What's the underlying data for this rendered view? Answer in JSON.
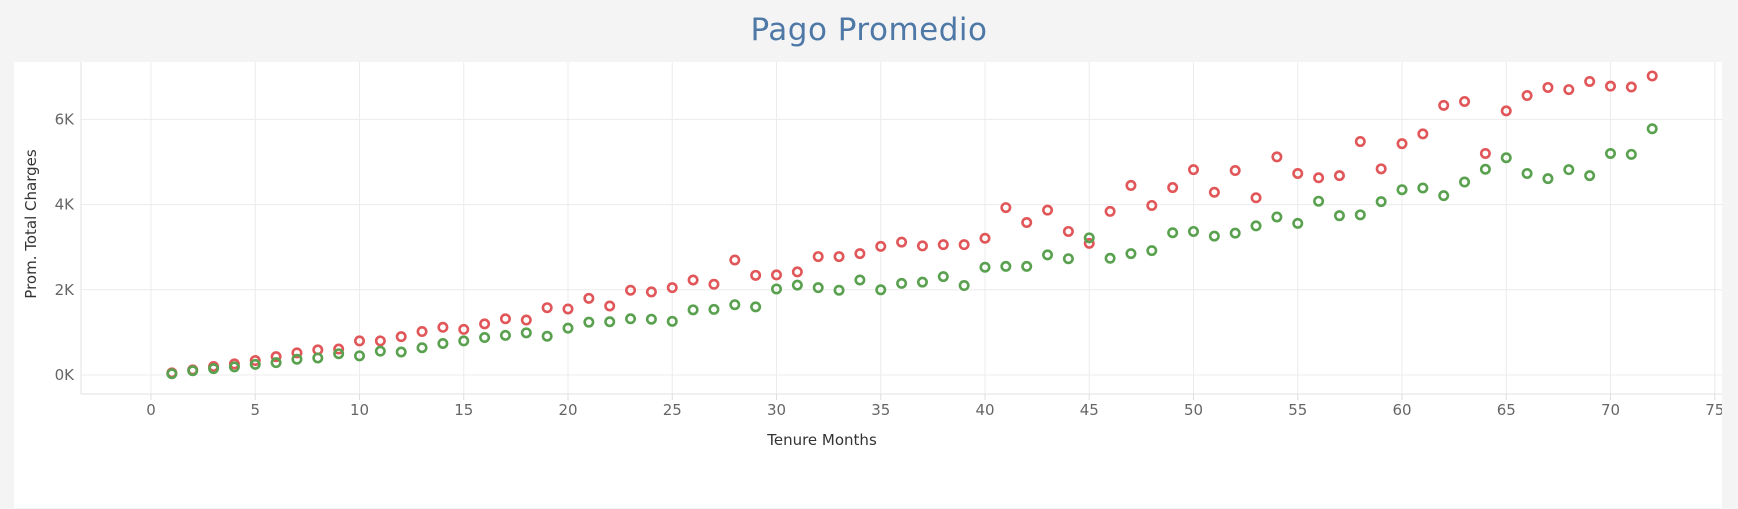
{
  "chart_data": {
    "type": "scatter",
    "title": "Pago Promedio",
    "xlabel": "Tenure Months",
    "ylabel": "Prom. Total Charges",
    "xlim": [
      -5,
      76
    ],
    "ylim": [
      -400,
      7500
    ],
    "x_ticks": [
      0,
      5,
      10,
      15,
      20,
      25,
      30,
      35,
      40,
      45,
      50,
      55,
      60,
      65,
      70,
      75
    ],
    "y_ticks": [
      0,
      2000,
      4000,
      6000
    ],
    "y_tick_labels": [
      "0K",
      "2K",
      "4K",
      "6K"
    ],
    "grid": true,
    "series": [
      {
        "color": "#e15759",
        "points": [
          [
            1,
            50
          ],
          [
            2,
            120
          ],
          [
            3,
            200
          ],
          [
            4,
            260
          ],
          [
            5,
            340
          ],
          [
            6,
            430
          ],
          [
            7,
            520
          ],
          [
            8,
            590
          ],
          [
            9,
            610
          ],
          [
            10,
            800
          ],
          [
            11,
            800
          ],
          [
            12,
            900
          ],
          [
            13,
            1020
          ],
          [
            14,
            1120
          ],
          [
            15,
            1070
          ],
          [
            16,
            1200
          ],
          [
            17,
            1320
          ],
          [
            18,
            1290
          ],
          [
            19,
            1580
          ],
          [
            20,
            1550
          ],
          [
            21,
            1800
          ],
          [
            22,
            1620
          ],
          [
            23,
            1990
          ],
          [
            24,
            1950
          ],
          [
            25,
            2050
          ],
          [
            26,
            2230
          ],
          [
            27,
            2130
          ],
          [
            28,
            2700
          ],
          [
            29,
            2340
          ],
          [
            30,
            2350
          ],
          [
            31,
            2420
          ],
          [
            32,
            2780
          ],
          [
            33,
            2780
          ],
          [
            34,
            2850
          ],
          [
            35,
            3020
          ],
          [
            36,
            3120
          ],
          [
            37,
            3030
          ],
          [
            38,
            3060
          ],
          [
            39,
            3060
          ],
          [
            40,
            3210
          ],
          [
            41,
            3930
          ],
          [
            42,
            3580
          ],
          [
            43,
            3870
          ],
          [
            44,
            3370
          ],
          [
            45,
            3090
          ],
          [
            46,
            3840
          ],
          [
            47,
            4450
          ],
          [
            48,
            3980
          ],
          [
            49,
            4400
          ],
          [
            50,
            4820
          ],
          [
            51,
            4290
          ],
          [
            52,
            4800
          ],
          [
            53,
            4160
          ],
          [
            54,
            5120
          ],
          [
            55,
            4730
          ],
          [
            56,
            4630
          ],
          [
            57,
            4680
          ],
          [
            58,
            5480
          ],
          [
            59,
            4840
          ],
          [
            60,
            5430
          ],
          [
            61,
            5660
          ],
          [
            62,
            6330
          ],
          [
            63,
            6420
          ],
          [
            64,
            5200
          ],
          [
            65,
            6200
          ],
          [
            66,
            6560
          ],
          [
            67,
            6750
          ],
          [
            68,
            6700
          ],
          [
            69,
            6890
          ],
          [
            70,
            6780
          ],
          [
            71,
            6760
          ],
          [
            72,
            7020
          ]
        ]
      },
      {
        "color": "#59a14f",
        "points": [
          [
            1,
            30
          ],
          [
            2,
            100
          ],
          [
            3,
            150
          ],
          [
            4,
            190
          ],
          [
            5,
            250
          ],
          [
            6,
            290
          ],
          [
            7,
            370
          ],
          [
            8,
            400
          ],
          [
            9,
            500
          ],
          [
            10,
            450
          ],
          [
            11,
            560
          ],
          [
            12,
            540
          ],
          [
            13,
            640
          ],
          [
            14,
            740
          ],
          [
            15,
            800
          ],
          [
            16,
            880
          ],
          [
            17,
            930
          ],
          [
            18,
            990
          ],
          [
            19,
            910
          ],
          [
            20,
            1100
          ],
          [
            21,
            1240
          ],
          [
            22,
            1250
          ],
          [
            23,
            1320
          ],
          [
            24,
            1310
          ],
          [
            25,
            1260
          ],
          [
            26,
            1530
          ],
          [
            27,
            1540
          ],
          [
            28,
            1650
          ],
          [
            29,
            1600
          ],
          [
            30,
            2020
          ],
          [
            31,
            2110
          ],
          [
            32,
            2050
          ],
          [
            33,
            1990
          ],
          [
            34,
            2230
          ],
          [
            35,
            2000
          ],
          [
            36,
            2150
          ],
          [
            37,
            2180
          ],
          [
            38,
            2310
          ],
          [
            39,
            2100
          ],
          [
            40,
            2530
          ],
          [
            41,
            2550
          ],
          [
            42,
            2550
          ],
          [
            43,
            2820
          ],
          [
            44,
            2730
          ],
          [
            45,
            3220
          ],
          [
            46,
            2740
          ],
          [
            47,
            2850
          ],
          [
            48,
            2920
          ],
          [
            49,
            3340
          ],
          [
            50,
            3370
          ],
          [
            51,
            3260
          ],
          [
            52,
            3330
          ],
          [
            53,
            3500
          ],
          [
            54,
            3710
          ],
          [
            55,
            3560
          ],
          [
            56,
            4080
          ],
          [
            57,
            3740
          ],
          [
            58,
            3760
          ],
          [
            59,
            4070
          ],
          [
            60,
            4350
          ],
          [
            61,
            4390
          ],
          [
            62,
            4210
          ],
          [
            63,
            4530
          ],
          [
            64,
            4830
          ],
          [
            65,
            5100
          ],
          [
            66,
            4730
          ],
          [
            67,
            4610
          ],
          [
            68,
            4820
          ],
          [
            69,
            4680
          ],
          [
            70,
            5200
          ],
          [
            71,
            5180
          ],
          [
            72,
            5780
          ]
        ]
      }
    ]
  }
}
